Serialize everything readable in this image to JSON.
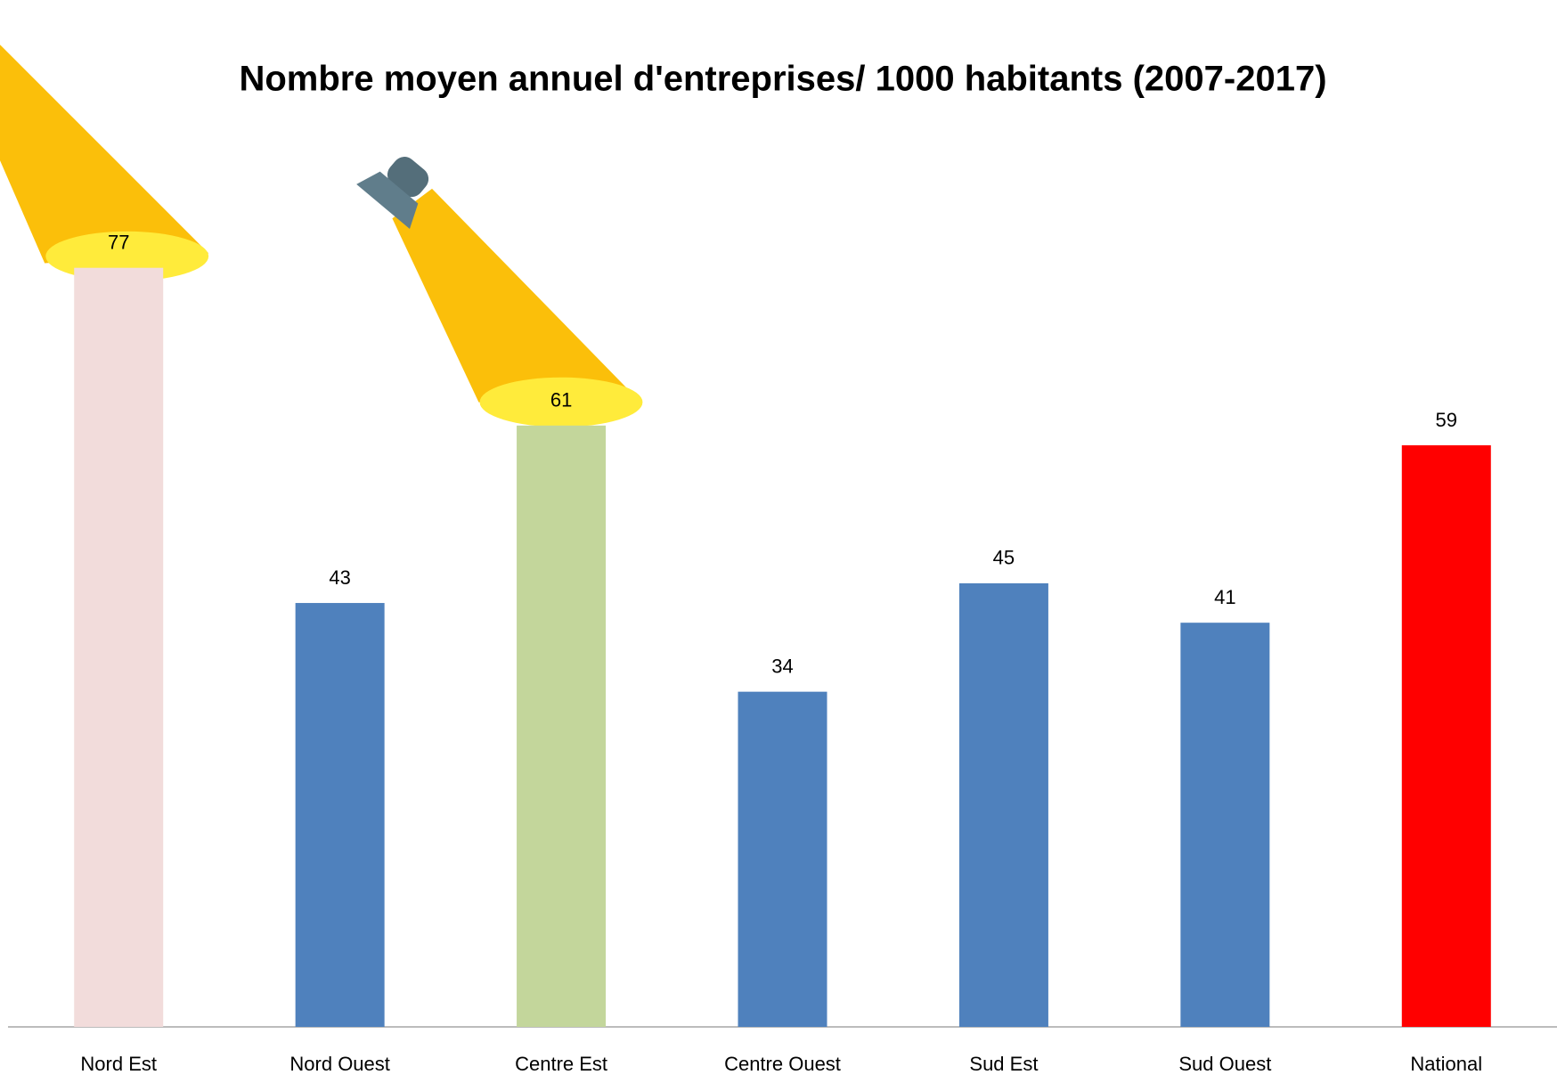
{
  "chart_data": {
    "type": "bar",
    "title": "Nombre moyen annuel d'entreprises/ 1000 habitants (2007-2017)",
    "categories": [
      "Nord Est",
      "Nord Ouest",
      "Centre Est",
      "Centre Ouest",
      "Sud Est",
      "Sud Ouest",
      "National"
    ],
    "values": [
      77,
      43,
      61,
      34,
      45,
      41,
      59
    ],
    "colors": [
      "#f2dcdb",
      "#4f81bd",
      "#c3d69b",
      "#4f81bd",
      "#4f81bd",
      "#4f81bd",
      "#ff0000"
    ],
    "ylim": [
      0,
      80
    ]
  }
}
